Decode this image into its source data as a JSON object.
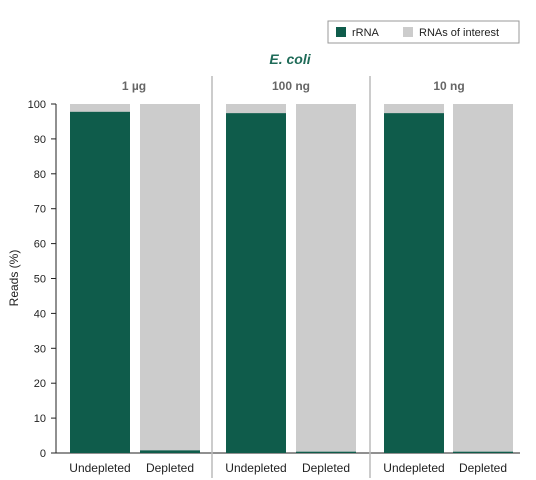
{
  "chart_data": {
    "type": "bar",
    "stacked": true,
    "title": "E. coli",
    "ylabel": "Reads (%)",
    "ylim": [
      0,
      100
    ],
    "yticks": [
      0,
      10,
      20,
      30,
      40,
      50,
      60,
      70,
      80,
      90,
      100
    ],
    "legend_position": "top-right",
    "grid": false,
    "panels": [
      {
        "title": "1 µg",
        "categories": [
          "Undepleted",
          "Depleted"
        ],
        "series": [
          {
            "name": "rRNA",
            "values": [
              97.8,
              0.8
            ]
          },
          {
            "name": "RNAs of interest",
            "values": [
              2.2,
              99.2
            ]
          }
        ]
      },
      {
        "title": "100 ng",
        "categories": [
          "Undepleted",
          "Depleted"
        ],
        "series": [
          {
            "name": "rRNA",
            "values": [
              97.4,
              0.4
            ]
          },
          {
            "name": "RNAs of interest",
            "values": [
              2.6,
              99.6
            ]
          }
        ]
      },
      {
        "title": "10 ng",
        "categories": [
          "Undepleted",
          "Depleted"
        ],
        "series": [
          {
            "name": "rRNA",
            "values": [
              97.4,
              0.4
            ]
          },
          {
            "name": "RNAs of interest",
            "values": [
              2.6,
              99.6
            ]
          }
        ]
      }
    ],
    "colors": {
      "rRNA": "#0f5c4b",
      "RNAs of interest": "#cccccc",
      "title": "#1f6b58"
    }
  }
}
